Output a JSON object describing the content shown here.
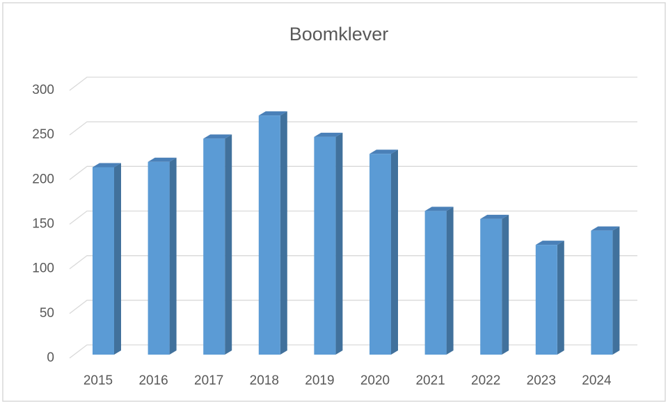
{
  "chart_data": {
    "type": "bar3d",
    "title": "Boomklever",
    "categories": [
      "2015",
      "2016",
      "2017",
      "2018",
      "2019",
      "2020",
      "2021",
      "2022",
      "2023",
      "2024"
    ],
    "values": [
      210,
      216,
      242,
      268,
      244,
      225,
      161,
      152,
      123,
      139
    ],
    "color": "#5b9bd5",
    "ylim": [
      0,
      300
    ],
    "yticks": [
      0,
      50,
      100,
      150,
      200,
      250,
      300
    ],
    "grid": true
  }
}
